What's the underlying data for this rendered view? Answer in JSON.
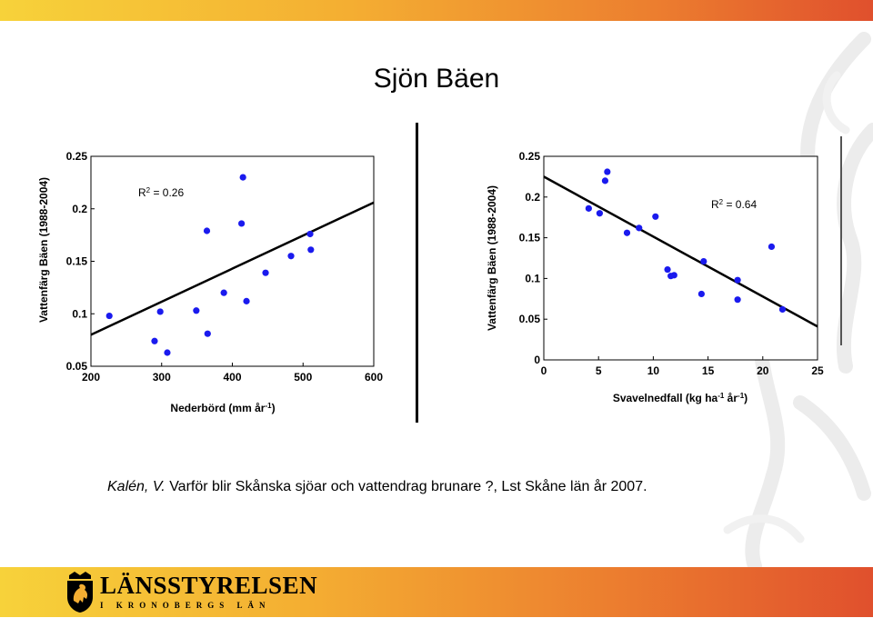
{
  "slide": {
    "title": "Sjön Bäen",
    "caption_author": "Kalén, V.",
    "caption_text": " Varför blir Skånska sjöar och vattendrag brunare ?, Lst Skåne län år 2007."
  },
  "logo": {
    "name": "LÄNSSTYRELSEN",
    "subtitle": "I KRONOBERGS LÄN",
    "icon": "coat-of-arms-lion"
  },
  "colors": {
    "point": "#1a1aee",
    "line": "#000000",
    "band_start": "#f7d23a",
    "band_end": "#e0502d"
  },
  "chart_data": [
    {
      "type": "scatter",
      "ylabel": "Vattenfärg Bäen (1988-2004)",
      "xlabel_main": "Nederbörd (mm år",
      "xlabel_sup": "-1",
      "xlabel_end": ")",
      "r2_prefix": "R",
      "r2_sup": "2",
      "r2_value": " = 0.26",
      "xlim": [
        200,
        600
      ],
      "ylim": [
        0.05,
        0.25
      ],
      "xticks": [
        200,
        300,
        400,
        500,
        600
      ],
      "yticks": [
        0.05,
        0.1,
        0.15,
        0.2,
        0.25
      ],
      "xticklabels": [
        "200",
        "300",
        "400",
        "500",
        "600"
      ],
      "yticklabels": [
        "0.05",
        "0.1",
        "0.15",
        "0.2",
        "0.25"
      ],
      "points": [
        [
          226,
          0.098
        ],
        [
          290,
          0.074
        ],
        [
          298,
          0.102
        ],
        [
          308,
          0.063
        ],
        [
          349,
          0.103
        ],
        [
          364,
          0.179
        ],
        [
          365,
          0.081
        ],
        [
          388,
          0.12
        ],
        [
          413,
          0.186
        ],
        [
          415,
          0.23
        ],
        [
          420,
          0.112
        ],
        [
          447,
          0.139
        ],
        [
          483,
          0.155
        ],
        [
          510,
          0.176
        ],
        [
          511,
          0.161
        ]
      ],
      "fit": [
        [
          200,
          0.08
        ],
        [
          600,
          0.206
        ]
      ]
    },
    {
      "type": "scatter",
      "ylabel": "Vattenfärg Bäen (1988-2004)",
      "xlabel_main": "Svavelnedfall (kg ha",
      "xlabel_sup1": "-1",
      "xlabel_mid": " år",
      "xlabel_sup2": "-1",
      "xlabel_end": ")",
      "r2_prefix": "R",
      "r2_sup": "2",
      "r2_value": " = 0.64",
      "xlim": [
        0,
        25
      ],
      "ylim": [
        0,
        0.25
      ],
      "xticks": [
        0,
        5,
        10,
        15,
        20,
        25
      ],
      "yticks": [
        0,
        0.05,
        0.1,
        0.15,
        0.2,
        0.25
      ],
      "xticklabels": [
        "0",
        "5",
        "10",
        "15",
        "20",
        "25"
      ],
      "yticklabels": [
        "0",
        "0.05",
        "0.1",
        "0.15",
        "0.2",
        "0.25"
      ],
      "points": [
        [
          4.1,
          0.186
        ],
        [
          5.1,
          0.18
        ],
        [
          5.6,
          0.22
        ],
        [
          5.8,
          0.231
        ],
        [
          7.6,
          0.156
        ],
        [
          8.7,
          0.162
        ],
        [
          10.2,
          0.176
        ],
        [
          11.3,
          0.111
        ],
        [
          11.6,
          0.103
        ],
        [
          11.9,
          0.104
        ],
        [
          14.4,
          0.081
        ],
        [
          14.6,
          0.121
        ],
        [
          17.7,
          0.098
        ],
        [
          17.7,
          0.074
        ],
        [
          20.8,
          0.139
        ],
        [
          21.8,
          0.062
        ]
      ],
      "fit": [
        [
          0,
          0.225
        ],
        [
          25,
          0.041
        ]
      ]
    }
  ]
}
